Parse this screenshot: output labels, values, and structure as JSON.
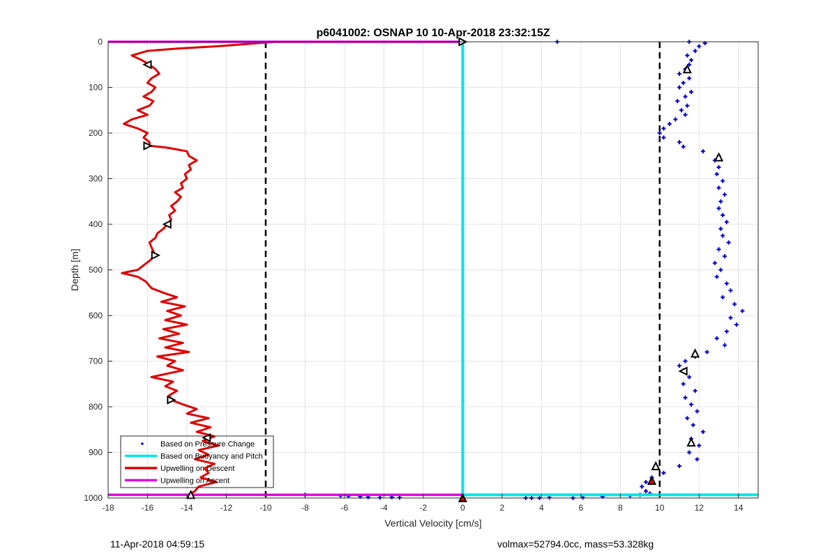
{
  "chart_data": {
    "type": "line",
    "title": "p6041002: OSNAP 10 10-Apr-2018 23:32:15Z",
    "xlabel": "Vertical Velocity [cm/s]",
    "ylabel": "Depth [m]",
    "xlim": [
      -18,
      15
    ],
    "ylim": [
      1000,
      0
    ],
    "y_reversed": true,
    "grid": true,
    "legend_position": "bottom-left",
    "xticks": [
      -18,
      -16,
      -14,
      -12,
      -10,
      -8,
      -6,
      -4,
      -2,
      0,
      2,
      4,
      6,
      8,
      10,
      12,
      14
    ],
    "yticks": [
      0,
      100,
      200,
      300,
      400,
      500,
      600,
      700,
      800,
      900,
      1000
    ],
    "reference_lines": {
      "x": [
        -10,
        10
      ],
      "style": "dashed",
      "color": "#000000"
    },
    "legend": [
      {
        "label": "Based on Pressure Change",
        "color": "#0000cc",
        "marker": "dot"
      },
      {
        "label": "Based on Buoyancy and Pitch",
        "color": "#00e5e5",
        "marker": "line"
      },
      {
        "label": "Upwelling on Descent",
        "color": "#dd0000",
        "marker": "line"
      },
      {
        "label": "Upwelling on Ascent",
        "color": "#e000e0",
        "marker": "line"
      }
    ],
    "series": [
      {
        "name": "Upwelling on Descent",
        "color": "#dd0000",
        "points": [
          [
            -9.5,
            0
          ],
          [
            -11,
            5
          ],
          [
            -12.5,
            10
          ],
          [
            -14.5,
            15
          ],
          [
            -16,
            20
          ],
          [
            -16.8,
            30
          ],
          [
            -16.3,
            40
          ],
          [
            -15.9,
            50
          ],
          [
            -15.6,
            60
          ],
          [
            -15.4,
            70
          ],
          [
            -15.8,
            80
          ],
          [
            -16.0,
            90
          ],
          [
            -15.6,
            100
          ],
          [
            -15.8,
            110
          ],
          [
            -16.2,
            120
          ],
          [
            -15.7,
            130
          ],
          [
            -15.9,
            140
          ],
          [
            -16.5,
            150
          ],
          [
            -16.0,
            160
          ],
          [
            -16.8,
            170
          ],
          [
            -17.2,
            180
          ],
          [
            -16.5,
            190
          ],
          [
            -16.0,
            200
          ],
          [
            -16.2,
            210
          ],
          [
            -15.9,
            220
          ],
          [
            -15.9,
            228
          ],
          [
            -15.0,
            232
          ],
          [
            -14.0,
            240
          ],
          [
            -13.9,
            250
          ],
          [
            -13.5,
            260
          ],
          [
            -13.9,
            270
          ],
          [
            -13.8,
            280
          ],
          [
            -14.1,
            290
          ],
          [
            -14.0,
            300
          ],
          [
            -14.3,
            310
          ],
          [
            -14.2,
            320
          ],
          [
            -14.6,
            330
          ],
          [
            -14.3,
            340
          ],
          [
            -14.5,
            350
          ],
          [
            -14.8,
            360
          ],
          [
            -14.6,
            370
          ],
          [
            -14.9,
            380
          ],
          [
            -14.8,
            390
          ],
          [
            -15.0,
            400
          ],
          [
            -15.2,
            410
          ],
          [
            -15.5,
            420
          ],
          [
            -15.6,
            430
          ],
          [
            -15.9,
            440
          ],
          [
            -15.8,
            450
          ],
          [
            -15.7,
            460
          ],
          [
            -15.6,
            468
          ],
          [
            -15.9,
            480
          ],
          [
            -16.2,
            490
          ],
          [
            -16.5,
            500
          ],
          [
            -17.3,
            507
          ],
          [
            -16.5,
            515
          ],
          [
            -16.1,
            525
          ],
          [
            -15.8,
            540
          ],
          [
            -15.2,
            550
          ],
          [
            -14.5,
            560
          ],
          [
            -15.3,
            570
          ],
          [
            -14.1,
            580
          ],
          [
            -15.0,
            590
          ],
          [
            -14.3,
            600
          ],
          [
            -15.1,
            610
          ],
          [
            -14.0,
            620
          ],
          [
            -15.2,
            630
          ],
          [
            -14.4,
            640
          ],
          [
            -15.4,
            650
          ],
          [
            -14.2,
            660
          ],
          [
            -15.1,
            670
          ],
          [
            -13.9,
            680
          ],
          [
            -15.5,
            690
          ],
          [
            -14.6,
            700
          ],
          [
            -15.0,
            710
          ],
          [
            -14.2,
            720
          ],
          [
            -15.8,
            735
          ],
          [
            -14.7,
            745
          ],
          [
            -15.1,
            755
          ],
          [
            -14.5,
            765
          ],
          [
            -14.9,
            775
          ],
          [
            -14.8,
            785
          ],
          [
            -14.2,
            795
          ],
          [
            -13.5,
            805
          ],
          [
            -14.0,
            815
          ],
          [
            -12.9,
            825
          ],
          [
            -13.8,
            835
          ],
          [
            -12.8,
            845
          ],
          [
            -13.5,
            855
          ],
          [
            -12.6,
            865
          ],
          [
            -13.2,
            875
          ],
          [
            -12.4,
            885
          ],
          [
            -13.4,
            895
          ],
          [
            -12.9,
            905
          ],
          [
            -13.6,
            915
          ],
          [
            -12.6,
            925
          ],
          [
            -13.1,
            935
          ],
          [
            -12.9,
            945
          ],
          [
            -13.3,
            955
          ],
          [
            -12.5,
            965
          ],
          [
            -13.4,
            975
          ],
          [
            -13.6,
            985
          ],
          [
            -13.9,
            992
          ]
        ]
      },
      {
        "name": "Based on Pressure Change",
        "color": "#0000cc",
        "points": [
          [
            4.8,
            0
          ],
          [
            11.5,
            0
          ],
          [
            12.3,
            3
          ],
          [
            12.0,
            10
          ],
          [
            11.8,
            20
          ],
          [
            11.4,
            30
          ],
          [
            11.6,
            40
          ],
          [
            11.5,
            50
          ],
          [
            11.3,
            60
          ],
          [
            11.0,
            70
          ],
          [
            11.5,
            80
          ],
          [
            11.2,
            90
          ],
          [
            11.0,
            100
          ],
          [
            11.6,
            110
          ],
          [
            11.3,
            120
          ],
          [
            10.9,
            130
          ],
          [
            11.4,
            140
          ],
          [
            11.1,
            150
          ],
          [
            11.3,
            160
          ],
          [
            10.8,
            170
          ],
          [
            10.5,
            180
          ],
          [
            10.2,
            190
          ],
          [
            10.0,
            200
          ],
          [
            10.2,
            210
          ],
          [
            11.0,
            220
          ],
          [
            11.2,
            230
          ],
          [
            12.2,
            240
          ],
          [
            13.0,
            250
          ],
          [
            12.8,
            260
          ],
          [
            13.0,
            275
          ],
          [
            12.9,
            290
          ],
          [
            13.2,
            305
          ],
          [
            13.0,
            320
          ],
          [
            13.3,
            335
          ],
          [
            13.1,
            350
          ],
          [
            13.0,
            365
          ],
          [
            13.2,
            380
          ],
          [
            13.4,
            395
          ],
          [
            13.1,
            410
          ],
          [
            13.2,
            425
          ],
          [
            13.5,
            440
          ],
          [
            13.0,
            455
          ],
          [
            13.3,
            470
          ],
          [
            12.8,
            485
          ],
          [
            13.1,
            500
          ],
          [
            12.9,
            515
          ],
          [
            13.4,
            530
          ],
          [
            13.6,
            545
          ],
          [
            13.2,
            560
          ],
          [
            13.8,
            575
          ],
          [
            14.2,
            590
          ],
          [
            13.6,
            605
          ],
          [
            13.9,
            620
          ],
          [
            13.4,
            635
          ],
          [
            12.9,
            650
          ],
          [
            13.3,
            665
          ],
          [
            12.4,
            680
          ],
          [
            11.8,
            690
          ],
          [
            11.3,
            700
          ],
          [
            11.0,
            710
          ],
          [
            11.2,
            720
          ],
          [
            11.5,
            735
          ],
          [
            11.2,
            750
          ],
          [
            11.8,
            765
          ],
          [
            11.3,
            780
          ],
          [
            11.6,
            795
          ],
          [
            11.9,
            810
          ],
          [
            11.4,
            825
          ],
          [
            11.7,
            840
          ],
          [
            12.2,
            855
          ],
          [
            11.6,
            870
          ],
          [
            12.0,
            885
          ],
          [
            11.5,
            900
          ],
          [
            11.9,
            915
          ],
          [
            11.0,
            930
          ],
          [
            10.2,
            945
          ],
          [
            9.6,
            955
          ],
          [
            9.3,
            965
          ],
          [
            9.1,
            975
          ],
          [
            9.3,
            985
          ],
          [
            9.5,
            990
          ]
        ]
      },
      {
        "name": "Based on Pressure Change (bottom turn)",
        "color": "#0000cc",
        "points": [
          [
            -8,
            993
          ],
          [
            -6.2,
            995
          ],
          [
            -5.8,
            996
          ],
          [
            -5.2,
            997
          ],
          [
            -4.8,
            998
          ],
          [
            -4.2,
            999
          ],
          [
            -3.6,
            998
          ],
          [
            -3.2,
            999
          ],
          [
            3.2,
            1000
          ],
          [
            3.5,
            1000
          ],
          [
            3.9,
            1000
          ],
          [
            4.4,
            999
          ],
          [
            5.6,
            1000
          ],
          [
            6.1,
            999
          ],
          [
            7.1,
            997
          ],
          [
            8.5,
            995
          ],
          [
            9.0,
            993
          ]
        ]
      },
      {
        "name": "Based on Buoyancy and Pitch",
        "color": "#00e5e5",
        "points": [
          [
            0,
            0
          ],
          [
            0,
            1000
          ]
        ]
      },
      {
        "name": "Based on Buoyancy and Pitch (bottom)",
        "color": "#00e5e5",
        "points": [
          [
            0,
            993
          ],
          [
            15,
            993
          ]
        ]
      },
      {
        "name": "Upwelling on Ascent",
        "color": "#e000e0",
        "points": [
          [
            -18,
            0
          ],
          [
            0,
            0
          ]
        ]
      },
      {
        "name": "Upwelling on Ascent (bottom)",
        "color": "#e000e0",
        "points": [
          [
            -18,
            993
          ],
          [
            0,
            993
          ]
        ]
      }
    ],
    "markers": [
      {
        "x": 0,
        "y": 0,
        "shape": "triangle-right",
        "fill": "#ffffff",
        "stroke": "#000000"
      },
      {
        "x": -16,
        "y": 50,
        "shape": "triangle-left",
        "fill": "#ffffff",
        "stroke": "#000000"
      },
      {
        "x": -16,
        "y": 228,
        "shape": "triangle-right",
        "fill": "#ffffff",
        "stroke": "#000000"
      },
      {
        "x": -15,
        "y": 400,
        "shape": "triangle-left",
        "fill": "#ffffff",
        "stroke": "#000000"
      },
      {
        "x": -15.6,
        "y": 468,
        "shape": "triangle-right",
        "fill": "#ffffff",
        "stroke": "#000000"
      },
      {
        "x": -14.8,
        "y": 785,
        "shape": "triangle-right",
        "fill": "#ffffff",
        "stroke": "#000000"
      },
      {
        "x": -13,
        "y": 868,
        "shape": "triangle-left",
        "fill": "#ffffff",
        "stroke": "#000000"
      },
      {
        "x": -13.8,
        "y": 993,
        "shape": "triangle-up",
        "fill": "#ffffff",
        "stroke": "#000000"
      },
      {
        "x": 11.4,
        "y": 60,
        "shape": "triangle-up",
        "fill": "#ffffff",
        "stroke": "#000000"
      },
      {
        "x": 13,
        "y": 253,
        "shape": "triangle-up",
        "fill": "#ffffff",
        "stroke": "#000000"
      },
      {
        "x": 11.8,
        "y": 683,
        "shape": "triangle-up",
        "fill": "#ffffff",
        "stroke": "#000000"
      },
      {
        "x": 11.2,
        "y": 722,
        "shape": "triangle-left",
        "fill": "#ffffff",
        "stroke": "#000000"
      },
      {
        "x": 11.6,
        "y": 878,
        "shape": "triangle-up",
        "fill": "#ffffff",
        "stroke": "#000000"
      },
      {
        "x": 9.8,
        "y": 930,
        "shape": "triangle-up",
        "fill": "#ffffff",
        "stroke": "#000000"
      },
      {
        "x": 9.6,
        "y": 962,
        "shape": "triangle-up",
        "fill": "#dd0000",
        "stroke": "#000000"
      },
      {
        "x": 0,
        "y": 1000,
        "shape": "triangle-up",
        "fill": "#dd0000",
        "stroke": "#000000"
      }
    ]
  },
  "footer": {
    "left": "11-Apr-2018 04:59:15",
    "right": "volmax=52794.0cc, mass=53.328kg"
  }
}
